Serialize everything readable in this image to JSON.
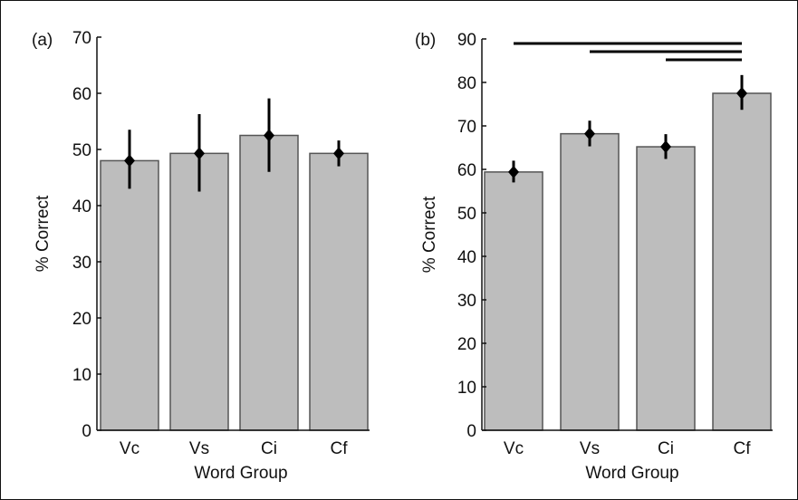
{
  "colors": {
    "bar_fill": "#bdbdbd",
    "bar_stroke": "#555555",
    "axis": "#111111",
    "error_bar": "#000000",
    "marker": "#000000",
    "significance_line": "#000000",
    "frame": "#111111"
  },
  "chart_data": [
    {
      "type": "bar",
      "panel_label": "(a)",
      "categories": [
        "Vc",
        "Vs",
        "Ci",
        "Cf"
      ],
      "values": [
        48,
        49.3,
        52.5,
        49.3
      ],
      "error_low": [
        43,
        42.5,
        46,
        47
      ],
      "error_high": [
        53.5,
        56.3,
        59.1,
        51.6
      ],
      "title": "",
      "xlabel": "Word Group",
      "ylabel": "% Correct",
      "ylim": [
        0,
        70
      ],
      "yticks": [
        0,
        10,
        20,
        30,
        40,
        50,
        60,
        70
      ],
      "significance_lines": [],
      "grid": false,
      "legend": "none"
    },
    {
      "type": "bar",
      "panel_label": "(b)",
      "categories": [
        "Vc",
        "Vs",
        "Ci",
        "Cf"
      ],
      "values": [
        59.4,
        68.2,
        65.2,
        77.5
      ],
      "error_low": [
        57,
        65.3,
        62.4,
        73.7
      ],
      "error_high": [
        62,
        71.2,
        68.1,
        81.7
      ],
      "title": "",
      "xlabel": "Word Group",
      "ylabel": "% Correct",
      "ylim": [
        0,
        90
      ],
      "yticks": [
        0,
        10,
        20,
        30,
        40,
        50,
        60,
        70,
        80,
        90
      ],
      "significance_lines": [
        {
          "from": "Vc",
          "to": "Cf"
        },
        {
          "from": "Vs",
          "to": "Cf"
        },
        {
          "from": "Ci",
          "to": "Cf"
        }
      ],
      "grid": false,
      "legend": "none"
    }
  ]
}
